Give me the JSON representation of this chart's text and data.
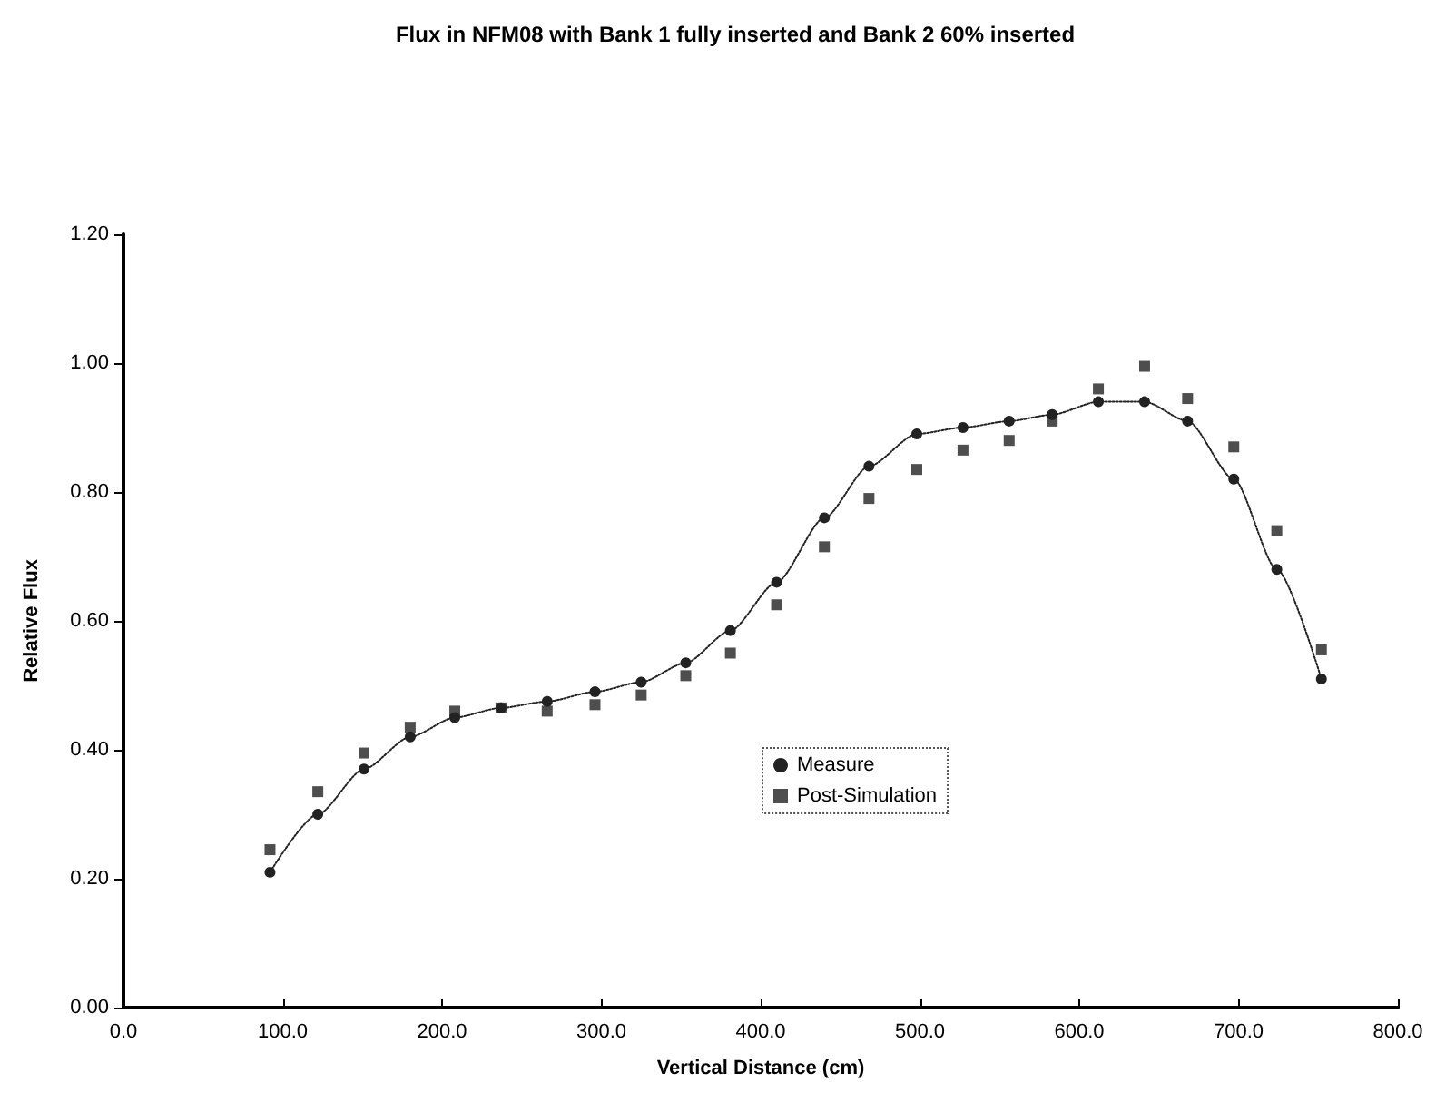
{
  "chart_data": {
    "type": "line",
    "title": "Flux in NFM08 with Bank 1 fully inserted and Bank 2 60% inserted",
    "xlabel": "Vertical Distance (cm)",
    "ylabel": "Relative Flux",
    "x": [
      92,
      122,
      151,
      180,
      208,
      237,
      266,
      296,
      325,
      353,
      381,
      410,
      440,
      468,
      498,
      527,
      556,
      583,
      612,
      641,
      668,
      697,
      724,
      752
    ],
    "series": [
      {
        "name": "Measure",
        "color": "#222222",
        "marker": "circle",
        "line_style": "dotted",
        "values": [
          0.21,
          0.3,
          0.37,
          0.42,
          0.45,
          0.465,
          0.475,
          0.49,
          0.505,
          0.535,
          0.585,
          0.66,
          0.76,
          0.84,
          0.89,
          0.9,
          0.91,
          0.92,
          0.94,
          0.94,
          0.91,
          0.82,
          0.68,
          0.51
        ]
      },
      {
        "name": "Post-Simulation",
        "type": "scatter",
        "color": "#222222",
        "marker": "square",
        "values": [
          0.245,
          0.335,
          0.395,
          0.435,
          0.46,
          0.465,
          0.46,
          0.47,
          0.485,
          0.515,
          0.55,
          0.625,
          0.715,
          0.79,
          0.835,
          0.865,
          0.88,
          0.91,
          0.96,
          0.995,
          0.945,
          0.87,
          0.74,
          0.555
        ]
      }
    ],
    "xlim": [
      0,
      800
    ],
    "xticks": [
      {
        "value": 0,
        "label": "0.0"
      },
      {
        "value": 100,
        "label": "100.0"
      },
      {
        "value": 200,
        "label": "200.0"
      },
      {
        "value": 300,
        "label": "300.0"
      },
      {
        "value": 400,
        "label": "400.0"
      },
      {
        "value": 500,
        "label": "500.0"
      },
      {
        "value": 600,
        "label": "600.0"
      },
      {
        "value": 700,
        "label": "700.0"
      },
      {
        "value": 800,
        "label": "800.0"
      }
    ],
    "ylim": [
      0,
      1.2
    ],
    "yticks": [
      {
        "value": 0,
        "label": "0.00"
      },
      {
        "value": 0.2,
        "label": "0.20"
      },
      {
        "value": 0.4,
        "label": "0.40"
      },
      {
        "value": 0.6,
        "label": "0.60"
      },
      {
        "value": 0.8,
        "label": "0.80"
      },
      {
        "value": 1,
        "label": "1.00"
      },
      {
        "value": 1.2,
        "label": "1.20"
      }
    ],
    "grid": false,
    "legend": "center"
  }
}
